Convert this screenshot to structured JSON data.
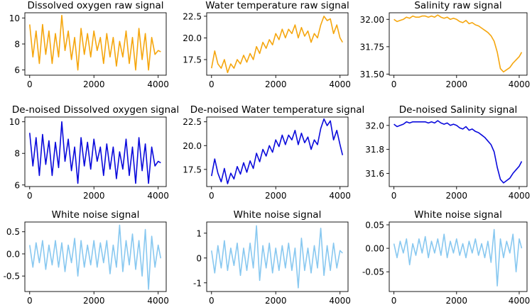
{
  "colors": {
    "raw": "#f5a60e",
    "denoised": "#0a0adc",
    "noise": "#88c8f0"
  },
  "chart_data": [
    {
      "type": "line",
      "title": "Dissolved oxygen raw signal",
      "series_style": "raw",
      "xlim": [
        -150,
        4250
      ],
      "ylim": [
        5.6,
        10.4
      ],
      "xticks": [
        0,
        2000,
        4000
      ],
      "yticks": [
        6,
        8,
        10
      ],
      "x": [
        0,
        100,
        200,
        300,
        400,
        500,
        600,
        700,
        800,
        900,
        1000,
        1100,
        1200,
        1300,
        1400,
        1500,
        1600,
        1700,
        1800,
        1900,
        2000,
        2100,
        2200,
        2300,
        2400,
        2500,
        2600,
        2700,
        2800,
        2900,
        3000,
        3100,
        3200,
        3300,
        3400,
        3500,
        3600,
        3700,
        3800,
        3900,
        4000,
        4080
      ],
      "y": [
        9.5,
        7.0,
        9.0,
        6.5,
        9.5,
        7.2,
        9.0,
        6.5,
        8.8,
        7.0,
        10.2,
        7.5,
        9.0,
        6.8,
        8.5,
        6.0,
        9.2,
        7.2,
        8.8,
        7.0,
        9.0,
        7.5,
        8.5,
        6.5,
        8.8,
        7.0,
        8.5,
        6.3,
        8.2,
        7.0,
        9.0,
        6.5,
        8.5,
        6.0,
        9.2,
        6.8,
        8.8,
        6.0,
        8.5,
        7.2,
        7.5,
        7.4
      ]
    },
    {
      "type": "line",
      "title": "Water temperature raw signal",
      "series_style": "raw",
      "xlim": [
        -150,
        4250
      ],
      "ylim": [
        15.7,
        22.9
      ],
      "xticks": [
        0,
        2000,
        4000
      ],
      "yticks": [
        17.5,
        20.0,
        22.5
      ],
      "x": [
        0,
        100,
        200,
        300,
        400,
        500,
        600,
        700,
        800,
        900,
        1000,
        1100,
        1200,
        1300,
        1400,
        1500,
        1600,
        1700,
        1800,
        1900,
        2000,
        2100,
        2200,
        2300,
        2400,
        2500,
        2600,
        2700,
        2800,
        2900,
        3000,
        3100,
        3200,
        3300,
        3400,
        3500,
        3600,
        3700,
        3800,
        3900,
        4000,
        4080
      ],
      "y": [
        16.5,
        18.5,
        17.0,
        16.5,
        17.5,
        16.0,
        17.0,
        16.5,
        17.5,
        17.0,
        18.0,
        17.2,
        18.2,
        17.5,
        19.0,
        18.2,
        19.5,
        18.8,
        19.8,
        19.2,
        20.5,
        19.8,
        21.0,
        20.0,
        21.0,
        20.5,
        21.5,
        20.0,
        21.2,
        20.2,
        20.8,
        19.5,
        20.5,
        20.0,
        21.5,
        22.5,
        22.0,
        22.2,
        20.5,
        21.5,
        20.0,
        19.5
      ]
    },
    {
      "type": "line",
      "title": "Salinity raw signal",
      "series_style": "raw",
      "xlim": [
        -150,
        4250
      ],
      "ylim": [
        31.49,
        32.06
      ],
      "xticks": [
        0,
        2000,
        4000
      ],
      "yticks": [
        31.5,
        31.75,
        32.0
      ],
      "x": [
        0,
        100,
        200,
        300,
        400,
        500,
        600,
        700,
        800,
        900,
        1000,
        1100,
        1200,
        1300,
        1400,
        1500,
        1600,
        1700,
        1800,
        1900,
        2000,
        2100,
        2200,
        2300,
        2400,
        2500,
        2600,
        2700,
        2800,
        2900,
        3000,
        3100,
        3200,
        3300,
        3400,
        3500,
        3600,
        3700,
        3800,
        3900,
        4000,
        4080
      ],
      "y": [
        32.0,
        31.98,
        31.99,
        32.0,
        32.02,
        32.01,
        32.03,
        32.02,
        32.02,
        32.03,
        32.03,
        32.02,
        32.03,
        32.02,
        32.04,
        32.02,
        32.01,
        32.02,
        32.0,
        32.01,
        32.0,
        31.98,
        31.97,
        31.99,
        31.96,
        31.97,
        31.95,
        31.94,
        31.92,
        31.9,
        31.88,
        31.85,
        31.8,
        31.7,
        31.55,
        31.52,
        31.54,
        31.56,
        31.6,
        31.63,
        31.66,
        31.7
      ]
    },
    {
      "type": "line",
      "title": "De-noised Dissolved oxygen signal",
      "series_style": "denoised",
      "xlim": [
        -150,
        4250
      ],
      "ylim": [
        5.9,
        10.3
      ],
      "xticks": [
        0,
        2000,
        4000
      ],
      "yticks": [
        6,
        8,
        10
      ],
      "x": [
        0,
        100,
        200,
        300,
        400,
        500,
        600,
        700,
        800,
        900,
        1000,
        1100,
        1200,
        1300,
        1400,
        1500,
        1600,
        1700,
        1800,
        1900,
        2000,
        2100,
        2200,
        2300,
        2400,
        2500,
        2600,
        2700,
        2800,
        2900,
        3000,
        3100,
        3200,
        3300,
        3400,
        3500,
        3600,
        3700,
        3800,
        3900,
        4000,
        4080
      ],
      "y": [
        9.3,
        7.2,
        9.0,
        6.6,
        9.2,
        7.3,
        8.8,
        6.6,
        8.7,
        7.1,
        10.0,
        7.5,
        8.9,
        6.9,
        8.4,
        6.1,
        9.0,
        7.2,
        8.7,
        7.0,
        8.9,
        7.5,
        8.4,
        6.6,
        8.6,
        7.0,
        8.4,
        6.4,
        8.1,
        7.0,
        8.9,
        6.6,
        8.4,
        6.1,
        9.0,
        6.9,
        8.6,
        6.1,
        8.4,
        7.2,
        7.5,
        7.4
      ]
    },
    {
      "type": "line",
      "title": "De-noised Water temperature signal",
      "series_style": "denoised",
      "xlim": [
        -150,
        4250
      ],
      "ylim": [
        15.7,
        23.0
      ],
      "xticks": [
        0,
        2000,
        4000
      ],
      "yticks": [
        17.5,
        20.0,
        22.5
      ],
      "x": [
        0,
        100,
        200,
        300,
        400,
        500,
        600,
        700,
        800,
        900,
        1000,
        1100,
        1200,
        1300,
        1400,
        1500,
        1600,
        1700,
        1800,
        1900,
        2000,
        2100,
        2200,
        2300,
        2400,
        2500,
        2600,
        2700,
        2800,
        2900,
        3000,
        3100,
        3200,
        3300,
        3400,
        3500,
        3600,
        3700,
        3800,
        3900,
        4000,
        4080
      ],
      "y": [
        16.8,
        18.6,
        17.1,
        16.2,
        17.6,
        16.0,
        17.1,
        16.5,
        17.8,
        17.0,
        18.2,
        17.2,
        18.4,
        17.6,
        19.2,
        18.3,
        19.6,
        18.9,
        20.0,
        19.3,
        20.6,
        19.9,
        21.1,
        20.1,
        21.1,
        20.6,
        21.6,
        20.1,
        21.3,
        20.3,
        20.9,
        19.6,
        20.6,
        20.1,
        21.8,
        22.8,
        22.1,
        22.6,
        20.6,
        21.6,
        20.1,
        19.0
      ]
    },
    {
      "type": "line",
      "title": "De-noised Salinity signal",
      "series_style": "denoised",
      "xlim": [
        -150,
        4250
      ],
      "ylim": [
        31.49,
        32.07
      ],
      "xticks": [
        0,
        2000,
        4000
      ],
      "yticks": [
        31.6,
        31.8,
        32.0
      ],
      "x": [
        0,
        100,
        200,
        300,
        400,
        500,
        600,
        700,
        800,
        900,
        1000,
        1100,
        1200,
        1300,
        1400,
        1500,
        1600,
        1700,
        1800,
        1900,
        2000,
        2100,
        2200,
        2300,
        2400,
        2500,
        2600,
        2700,
        2800,
        2900,
        3000,
        3100,
        3200,
        3300,
        3400,
        3500,
        3600,
        3700,
        3800,
        3900,
        4000,
        4080
      ],
      "y": [
        32.01,
        31.99,
        32.0,
        32.01,
        32.03,
        32.02,
        32.03,
        32.03,
        32.03,
        32.03,
        32.03,
        32.02,
        32.03,
        32.02,
        32.04,
        32.02,
        32.01,
        32.02,
        32.0,
        32.01,
        32.0,
        31.98,
        31.97,
        31.99,
        31.96,
        31.97,
        31.95,
        31.94,
        31.92,
        31.9,
        31.87,
        31.84,
        31.78,
        31.65,
        31.55,
        31.52,
        31.54,
        31.56,
        31.6,
        31.63,
        31.66,
        31.7
      ]
    },
    {
      "type": "line",
      "title": "White noise signal",
      "series_style": "noise",
      "xlim": [
        -150,
        4250
      ],
      "ylim": [
        -0.85,
        0.72
      ],
      "xticks": [
        0,
        2000,
        4000
      ],
      "yticks": [
        -0.5,
        0.0,
        0.5
      ],
      "x": [
        0,
        100,
        200,
        300,
        400,
        500,
        600,
        700,
        800,
        900,
        1000,
        1100,
        1200,
        1300,
        1400,
        1500,
        1600,
        1700,
        1800,
        1900,
        2000,
        2100,
        2200,
        2300,
        2400,
        2500,
        2600,
        2700,
        2800,
        2900,
        3000,
        3100,
        3200,
        3300,
        3400,
        3500,
        3600,
        3700,
        3800,
        3900,
        4000,
        4080
      ],
      "y": [
        0.2,
        -0.3,
        0.25,
        -0.2,
        0.3,
        -0.35,
        0.2,
        -0.25,
        0.3,
        -0.3,
        0.25,
        -0.4,
        0.2,
        -0.2,
        0.35,
        -0.5,
        0.3,
        -0.3,
        0.2,
        -0.25,
        0.3,
        -0.3,
        0.25,
        -0.2,
        0.3,
        -0.45,
        0.2,
        -0.3,
        0.65,
        -0.4,
        0.3,
        -0.25,
        0.45,
        -0.35,
        0.3,
        -0.5,
        0.55,
        -0.8,
        0.4,
        -0.3,
        0.2,
        -0.1
      ]
    },
    {
      "type": "line",
      "title": "White noise signal",
      "series_style": "noise",
      "xlim": [
        -150,
        4250
      ],
      "ylim": [
        -1.35,
        1.45
      ],
      "xticks": [
        0,
        2000,
        4000
      ],
      "yticks": [
        -1,
        0,
        1
      ],
      "x": [
        0,
        100,
        200,
        300,
        400,
        500,
        600,
        700,
        800,
        900,
        1000,
        1100,
        1200,
        1300,
        1400,
        1500,
        1600,
        1700,
        1800,
        1900,
        2000,
        2100,
        2200,
        2300,
        2400,
        2500,
        2600,
        2700,
        2800,
        2900,
        3000,
        3100,
        3200,
        3300,
        3400,
        3500,
        3600,
        3700,
        3800,
        3900,
        4000,
        4080
      ],
      "y": [
        0.3,
        -0.6,
        0.5,
        -0.4,
        0.7,
        -0.5,
        0.4,
        -0.3,
        0.6,
        -0.7,
        0.4,
        -0.5,
        0.6,
        -0.4,
        1.3,
        -0.9,
        0.5,
        -0.4,
        0.6,
        -0.6,
        0.4,
        -0.5,
        0.5,
        -0.4,
        0.6,
        -0.5,
        0.4,
        -1.2,
        0.8,
        -0.5,
        0.4,
        -0.6,
        0.5,
        -0.4,
        1.2,
        -0.7,
        0.5,
        -0.5,
        0.6,
        -0.4,
        0.3,
        0.2
      ]
    },
    {
      "type": "line",
      "title": "White noise signal",
      "series_style": "noise",
      "xlim": [
        -150,
        4250
      ],
      "ylim": [
        -0.092,
        0.056
      ],
      "xticks": [
        0,
        2000,
        4000
      ],
      "yticks": [
        -0.05,
        0.0,
        0.05
      ],
      "x": [
        0,
        100,
        200,
        300,
        400,
        500,
        600,
        700,
        800,
        900,
        1000,
        1100,
        1200,
        1300,
        1400,
        1500,
        1600,
        1700,
        1800,
        1900,
        2000,
        2100,
        2200,
        2300,
        2400,
        2500,
        2600,
        2700,
        2800,
        2900,
        3000,
        3100,
        3200,
        3300,
        3400,
        3500,
        3600,
        3700,
        3800,
        3900,
        4000,
        4080
      ],
      "y": [
        0.01,
        -0.02,
        0.015,
        -0.01,
        0.02,
        -0.035,
        0.01,
        -0.015,
        0.02,
        -0.01,
        0.025,
        -0.02,
        0.015,
        -0.01,
        0.02,
        -0.015,
        0.03,
        -0.02,
        0.015,
        -0.01,
        0.02,
        -0.015,
        0.01,
        -0.02,
        0.015,
        -0.01,
        0.02,
        -0.015,
        0.01,
        -0.02,
        0.015,
        -0.03,
        0.04,
        -0.08,
        0.02,
        -0.02,
        0.015,
        -0.01,
        0.03,
        -0.05,
        0.02,
        0.0
      ]
    }
  ]
}
